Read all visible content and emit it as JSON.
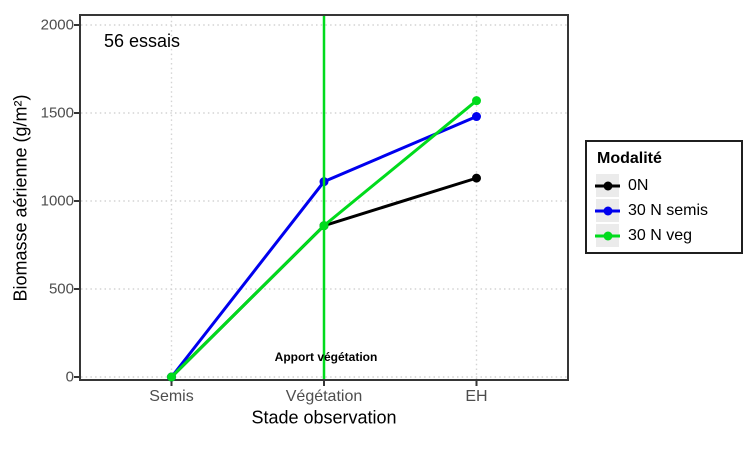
{
  "chart_data": {
    "type": "line",
    "annotations": {
      "trial_count": "56 essais"
    },
    "categories": [
      "Semis",
      "Végétation",
      "EH"
    ],
    "xlabel": "Stade observation",
    "ylabel": "Biomasse aérienne (g/m²)",
    "ylim": [
      0,
      2000
    ],
    "y_ticks": [
      0,
      500,
      1000,
      1500,
      2000
    ],
    "grid": "major-dotted",
    "legend": {
      "title": "Modalité",
      "position": "right"
    },
    "series": [
      {
        "name": "0N",
        "color": "#000000",
        "values": [
          0,
          860,
          1130
        ]
      },
      {
        "name": "30 N semis",
        "color": "#0000EE",
        "values": [
          0,
          1110,
          1480
        ]
      },
      {
        "name": "30 N veg",
        "color": "#00DB1C",
        "values": [
          0,
          860,
          1570
        ]
      }
    ],
    "vline": {
      "at_category": "Végétation",
      "color": "#00DB1C",
      "label": "Apport végétation"
    }
  }
}
